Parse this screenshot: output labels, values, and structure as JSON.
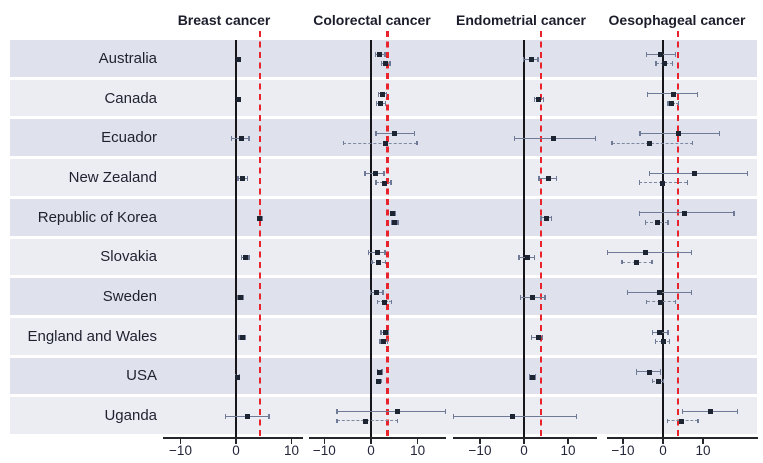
{
  "colors": {
    "band_dark": "#dfe2ec",
    "band_light": "#ebedf3",
    "marker": "#1e2532",
    "whisker": "#6e7a96",
    "red_dashed": "#e8232b",
    "axis": "#25262c",
    "text": "#1f2130"
  },
  "chart_data": {
    "type": "scatter",
    "subtype": "forest-plot",
    "grid": "off",
    "legend": "none",
    "countries": [
      "Australia",
      "Canada",
      "Ecuador",
      "New Zealand",
      "Republic of Korea",
      "Slovakia",
      "Sweden",
      "England and Wales",
      "USA",
      "Uganda"
    ],
    "x_axis": {
      "tick_labels": [
        "−10",
        "0",
        "10"
      ],
      "tick_values": [
        -10,
        0,
        10
      ]
    },
    "panels": [
      {
        "title": "Breast cancer",
        "red_line_x": 4.3,
        "zero_line_x": 0,
        "xlim": [
          -13.2,
          12.1
        ],
        "series": [
          {
            "style": "solid",
            "estimates": [
              {
                "country": "Australia",
                "est": 0.4,
                "lo": 0.1,
                "hi": 0.8
              },
              {
                "country": "Canada",
                "est": 0.4,
                "lo": 0.1,
                "hi": 0.8
              },
              {
                "country": "Ecuador",
                "est": 1.0,
                "lo": -0.9,
                "hi": 2.4
              },
              {
                "country": "New Zealand",
                "est": 1.2,
                "lo": 0.3,
                "hi": 2.1
              },
              {
                "country": "Republic of Korea",
                "est": 4.3,
                "lo": 3.9,
                "hi": 4.7
              },
              {
                "country": "Slovakia",
                "est": 1.7,
                "lo": 1.0,
                "hi": 2.4
              },
              {
                "country": "Sweden",
                "est": 0.8,
                "lo": 0.3,
                "hi": 1.4
              },
              {
                "country": "England and Wales",
                "est": 1.1,
                "lo": 0.5,
                "hi": 1.7
              },
              {
                "country": "USA",
                "est": 0.3,
                "lo": -0.1,
                "hi": 0.7
              },
              {
                "country": "Uganda",
                "est": 2.0,
                "lo": -1.9,
                "hi": 6.0
              }
            ]
          }
        ]
      },
      {
        "title": "Colorectal cancer",
        "red_line_x": 3.5,
        "zero_line_x": 0,
        "xlim": [
          -13.3,
          16.1
        ],
        "series": [
          {
            "style": "solid",
            "estimates": [
              {
                "country": "Australia",
                "est": 1.9,
                "lo": 0.9,
                "hi": 3.0
              },
              {
                "country": "Canada",
                "est": 2.4,
                "lo": 1.6,
                "hi": 3.4
              },
              {
                "country": "Ecuador",
                "est": 5.0,
                "lo": 1.0,
                "hi": 9.3
              },
              {
                "country": "New Zealand",
                "est": 0.9,
                "lo": -1.3,
                "hi": 2.8
              },
              {
                "country": "Republic of Korea",
                "est": 4.7,
                "lo": 4.1,
                "hi": 5.3
              },
              {
                "country": "Slovakia",
                "est": 1.4,
                "lo": -0.6,
                "hi": 3.0
              },
              {
                "country": "Sweden",
                "est": 1.2,
                "lo": -0.1,
                "hi": 2.6
              },
              {
                "country": "England and Wales",
                "est": 3.0,
                "lo": 2.1,
                "hi": 3.8
              },
              {
                "country": "USA",
                "est": 1.9,
                "lo": 1.3,
                "hi": 2.4
              },
              {
                "country": "Uganda",
                "est": 5.6,
                "lo": -7.3,
                "hi": 16.0
              }
            ]
          },
          {
            "style": "dashed",
            "estimates": [
              {
                "country": "Australia",
                "est": 3.2,
                "lo": 2.2,
                "hi": 4.1
              },
              {
                "country": "Canada",
                "est": 2.1,
                "lo": 1.2,
                "hi": 3.2
              },
              {
                "country": "Ecuador",
                "est": 3.0,
                "lo": -5.9,
                "hi": 9.9
              },
              {
                "country": "New Zealand",
                "est": 2.8,
                "lo": 1.0,
                "hi": 4.3
              },
              {
                "country": "Republic of Korea",
                "est": 5.1,
                "lo": 4.4,
                "hi": 5.8
              },
              {
                "country": "Slovakia",
                "est": 1.7,
                "lo": 0.2,
                "hi": 3.1
              },
              {
                "country": "Sweden",
                "est": 2.9,
                "lo": 1.3,
                "hi": 4.4
              },
              {
                "country": "England and Wales",
                "est": 2.7,
                "lo": 1.9,
                "hi": 3.6
              },
              {
                "country": "USA",
                "est": 1.7,
                "lo": 1.1,
                "hi": 2.3
              },
              {
                "country": "Uganda",
                "est": -1.1,
                "lo": -7.3,
                "hi": 5.7
              }
            ]
          }
        ]
      },
      {
        "title": "Endometrial cancer",
        "red_line_x": 3.9,
        "zero_line_x": 0,
        "xlim": [
          -16.1,
          16.6
        ],
        "series": [
          {
            "style": "solid",
            "estimates": [
              {
                "country": "Australia",
                "est": 1.7,
                "lo": -0.2,
                "hi": 3.2
              },
              {
                "country": "Canada",
                "est": 3.4,
                "lo": 2.4,
                "hi": 4.5
              },
              {
                "country": "Ecuador",
                "est": 6.7,
                "lo": -2.2,
                "hi": 16.3
              },
              {
                "country": "New Zealand",
                "est": 5.5,
                "lo": 3.4,
                "hi": 7.4
              },
              {
                "country": "Republic of Korea",
                "est": 5.2,
                "lo": 3.8,
                "hi": 6.3
              },
              {
                "country": "Slovakia",
                "est": 0.9,
                "lo": -1.2,
                "hi": 2.5
              },
              {
                "country": "Sweden",
                "est": 2.0,
                "lo": -0.9,
                "hi": 4.8
              },
              {
                "country": "England and Wales",
                "est": 3.2,
                "lo": 1.6,
                "hi": 4.3
              },
              {
                "country": "USA",
                "est": 1.9,
                "lo": 1.2,
                "hi": 2.6
              },
              {
                "country": "Uganda",
                "est": -2.6,
                "lo": -16.3,
                "hi": 12.0
              }
            ]
          }
        ]
      },
      {
        "title": "Oesophageal cancer",
        "red_line_x": 3.8,
        "zero_line_x": 0,
        "xlim": [
          -14.0,
          23.7
        ],
        "series": [
          {
            "style": "solid",
            "estimates": [
              {
                "country": "Australia",
                "est": -0.6,
                "lo": -4.1,
                "hi": 3.2
              },
              {
                "country": "Canada",
                "est": 2.5,
                "lo": -3.9,
                "hi": 8.6
              },
              {
                "country": "Ecuador",
                "est": 3.8,
                "lo": -5.8,
                "hi": 14.1
              },
              {
                "country": "New Zealand",
                "est": 7.9,
                "lo": -3.5,
                "hi": 21.2
              },
              {
                "country": "Republic of Korea",
                "est": 5.3,
                "lo": -5.9,
                "hi": 17.8
              },
              {
                "country": "Slovakia",
                "est": -4.3,
                "lo": -14.5,
                "hi": 7.2
              },
              {
                "country": "Sweden",
                "est": -1.0,
                "lo": -8.9,
                "hi": 7.2
              },
              {
                "country": "England and Wales",
                "est": -0.8,
                "lo": -2.7,
                "hi": 1.3
              },
              {
                "country": "USA",
                "est": -3.5,
                "lo": -6.6,
                "hi": -0.6
              },
              {
                "country": "Uganda",
                "est": 11.8,
                "lo": 4.8,
                "hi": 18.6
              }
            ]
          },
          {
            "style": "dashed",
            "estimates": [
              {
                "country": "Australia",
                "est": 0.3,
                "lo": -1.8,
                "hi": 2.4
              },
              {
                "country": "Canada",
                "est": 2.1,
                "lo": 1.2,
                "hi": 4.0
              },
              {
                "country": "Ecuador",
                "est": -3.3,
                "lo": -12.8,
                "hi": 7.4
              },
              {
                "country": "New Zealand",
                "est": -0.1,
                "lo": -5.9,
                "hi": 6.1
              },
              {
                "country": "Republic of Korea",
                "est": -1.4,
                "lo": -4.5,
                "hi": 1.3
              },
              {
                "country": "Slovakia",
                "est": -6.6,
                "lo": -10.3,
                "hi": -2.7
              },
              {
                "country": "Sweden",
                "est": -0.6,
                "lo": -4.1,
                "hi": 3.2
              },
              {
                "country": "England and Wales",
                "est": 0.0,
                "lo": -1.9,
                "hi": 1.7
              },
              {
                "country": "USA",
                "est": -1.2,
                "lo": -2.7,
                "hi": 0.1
              },
              {
                "country": "Uganda",
                "est": 4.7,
                "lo": 1.1,
                "hi": 8.8
              }
            ]
          }
        ]
      }
    ]
  }
}
